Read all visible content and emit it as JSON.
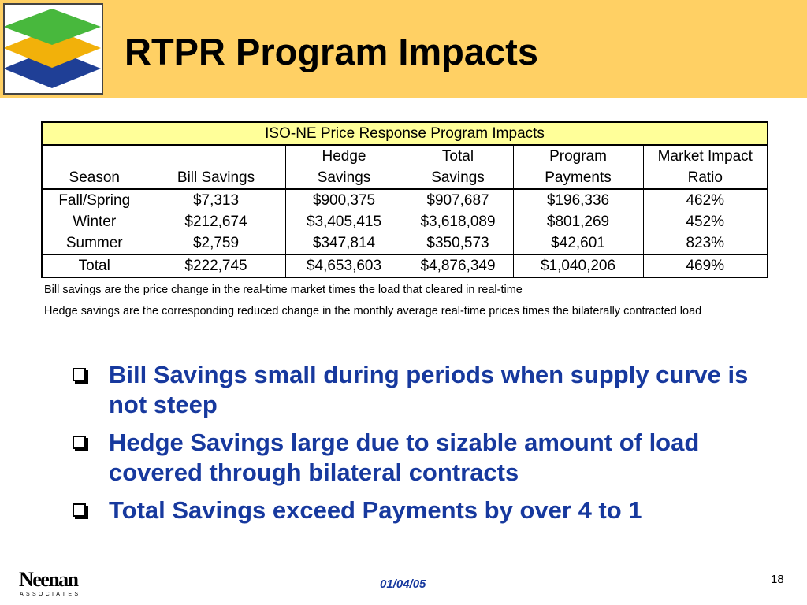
{
  "slide": {
    "title": "RTPR Program Impacts",
    "page_number": "18",
    "date": "01/04/05"
  },
  "brand": {
    "name": "Neenan",
    "sub": "ASSOCIATES",
    "header_color": "#ffd064",
    "accent_color": "#17399e"
  },
  "table": {
    "caption": "ISO-NE Price Response Program Impacts",
    "headers": [
      [
        "",
        "Season"
      ],
      [
        "",
        "Bill Savings"
      ],
      [
        "Hedge",
        "Savings"
      ],
      [
        "Total",
        "Savings"
      ],
      [
        "Program",
        "Payments"
      ],
      [
        "Market Impact",
        "Ratio"
      ]
    ],
    "rows": [
      [
        "Fall/Spring",
        "$7,313",
        "$900,375",
        "$907,687",
        "$196,336",
        "462%"
      ],
      [
        "Winter",
        "$212,674",
        "$3,405,415",
        "$3,618,089",
        "$801,269",
        "452%"
      ],
      [
        "Summer",
        "$2,759",
        "$347,814",
        "$350,573",
        "$42,601",
        "823%"
      ]
    ],
    "total": [
      "Total",
      "$222,745",
      "$4,653,603",
      "$4,876,349",
      "$1,040,206",
      "469%"
    ]
  },
  "notes": [
    "Bill savings are the price change in the real-time market times the load that cleared in real-time",
    "Hedge savings are the corresponding reduced change in the monthly average real-time prices times the bilaterally contracted load"
  ],
  "bullets": [
    "Bill Savings small during periods when supply curve is not steep",
    "Hedge Savings large due to sizable amount of load covered through bilateral contracts",
    "Total Savings exceed Payments by over 4 to 1"
  ],
  "icons": {
    "header_logo": "layered-diamonds-icon",
    "bullet": "checkbox-bullet-icon"
  }
}
